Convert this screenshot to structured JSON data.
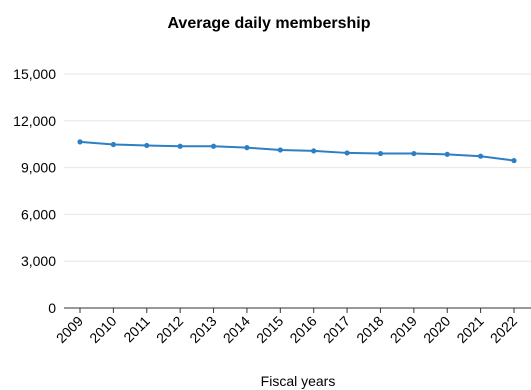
{
  "chart_data": {
    "type": "line",
    "title": "Average daily membership",
    "xlabel": "Fiscal years",
    "ylabel": "",
    "categories": [
      "2009",
      "2010",
      "2011",
      "2012",
      "2013",
      "2014",
      "2015",
      "2016",
      "2017",
      "2018",
      "2019",
      "2020",
      "2021",
      "2022"
    ],
    "series": [
      {
        "values": [
          10650,
          10480,
          10420,
          10370,
          10370,
          10280,
          10130,
          10070,
          9940,
          9900,
          9900,
          9850,
          9730,
          9450
        ],
        "color": "#2e7ec4"
      }
    ],
    "ylim": [
      0,
      15000
    ],
    "yticks": [
      0,
      3000,
      6000,
      9000,
      12000,
      15000
    ],
    "ytick_labels": [
      "0",
      "3,000",
      "6,000",
      "9,000",
      "12,000",
      "15,000"
    ],
    "grid": true,
    "grid_color": "#e6e6e6",
    "legend": "none"
  }
}
